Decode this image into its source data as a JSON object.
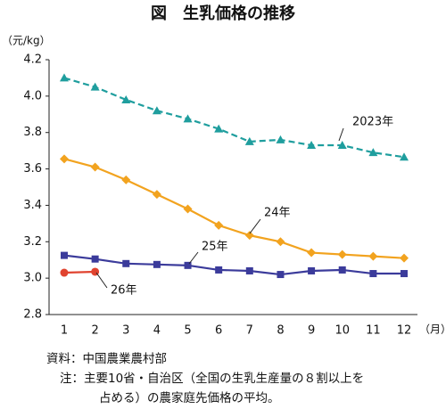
{
  "chart_data": {
    "type": "line",
    "title": "図　生乳価格の推移",
    "y_unit": "（元/kg）",
    "x_unit": "（月）",
    "categories": [
      "1",
      "2",
      "3",
      "4",
      "5",
      "6",
      "7",
      "8",
      "9",
      "10",
      "11",
      "12"
    ],
    "series": [
      {
        "name": "2023年",
        "color": "#1f9e9e",
        "dash": true,
        "marker": "triangle",
        "values": [
          4.1,
          4.05,
          3.98,
          3.92,
          3.875,
          3.82,
          3.75,
          3.76,
          3.73,
          3.73,
          3.69,
          3.665
        ]
      },
      {
        "name": "24年",
        "color": "#f2a31f",
        "dash": false,
        "marker": "diamond",
        "values": [
          3.655,
          3.61,
          3.54,
          3.46,
          3.38,
          3.29,
          3.235,
          3.2,
          3.14,
          3.13,
          3.12,
          3.11
        ]
      },
      {
        "name": "25年",
        "color": "#3b3b9b",
        "dash": false,
        "marker": "square",
        "values": [
          3.125,
          3.105,
          3.08,
          3.075,
          3.07,
          3.045,
          3.04,
          3.02,
          3.04,
          3.045,
          3.025,
          3.025
        ]
      },
      {
        "name": "26年",
        "color": "#e0432f",
        "dash": false,
        "marker": "circle",
        "values": [
          3.03,
          3.035,
          null,
          null,
          null,
          null,
          null,
          null,
          null,
          null,
          null,
          null
        ]
      }
    ],
    "ylim": [
      2.8,
      4.2
    ],
    "yticks": [
      2.8,
      {
        "value": 3.0,
        "label": "3.0"
      },
      3.2,
      3.4,
      3.6,
      3.8,
      {
        "value": 4.0,
        "label": "4.0"
      },
      4.2
    ],
    "notes": [
      "資料：中国農業農村部",
      "注：主要10省・自治区（全国の生乳生産量の８割以上を",
      "占める）の農家庭先価格の平均。"
    ]
  }
}
